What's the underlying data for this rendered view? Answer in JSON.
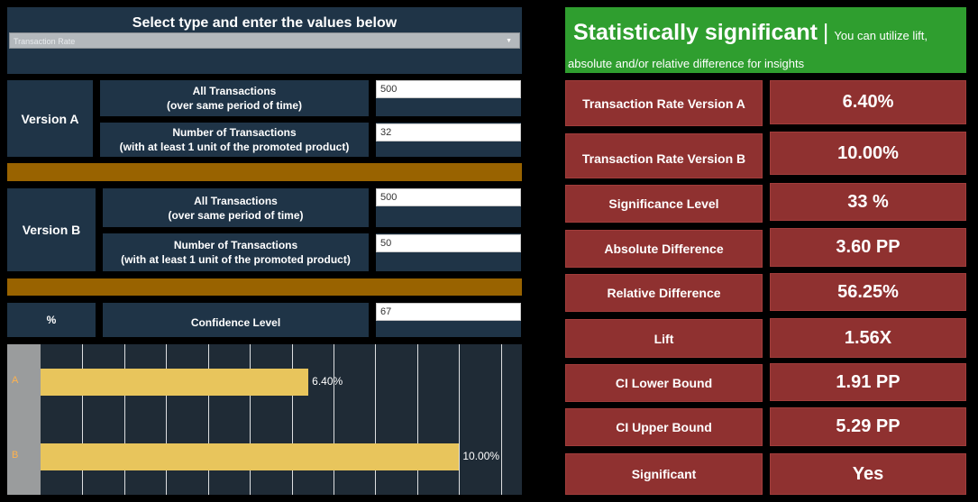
{
  "header": {
    "title": "Select type and enter the values below",
    "select_value": "Transaction Rate"
  },
  "version_a": {
    "label": "Version A",
    "all_transactions_label_1": "All Transactions",
    "all_transactions_label_2": "(over same period of time)",
    "all_transactions_value": "500",
    "num_transactions_label_1": "Number of Transactions",
    "num_transactions_label_2": "(with at least 1 unit of the promoted product)",
    "num_transactions_value": "32"
  },
  "version_b": {
    "label": "Version B",
    "all_transactions_label_1": "All Transactions",
    "all_transactions_label_2": "(over same period of time)",
    "all_transactions_value": "500",
    "num_transactions_label_1": "Number of Transactions",
    "num_transactions_label_2": "(with at least 1 unit of the promoted product)",
    "num_transactions_value": "50"
  },
  "confidence": {
    "unit_label": "%",
    "label": "Confidence Level",
    "value": "67"
  },
  "result_banner": {
    "title": "Statistically significant",
    "separator": "|",
    "subtitle_1": "You can utilize lift,",
    "subtitle_2": "absolute and/or relative difference for insights"
  },
  "results": [
    {
      "label": "Transaction Rate Version A",
      "value": "6.40%"
    },
    {
      "label": "Transaction Rate Version B",
      "value": "10.00%"
    },
    {
      "label": "Significance Level",
      "value": "33 %"
    },
    {
      "label": "Absolute Difference",
      "value": "3.60 PP"
    },
    {
      "label": "Relative Difference",
      "value": "56.25%"
    },
    {
      "label": "Lift",
      "value": "1.56X"
    },
    {
      "label": "CI Lower Bound",
      "value": "1.91 PP"
    },
    {
      "label": "CI Upper Bound",
      "value": "5.29 PP"
    },
    {
      "label": "Significant",
      "value": "Yes"
    }
  ],
  "colors": {
    "panel": "#1f3447",
    "divider": "#996300",
    "result": "#8f3130",
    "banner": "#2f9e2f",
    "bar": "#e8c55c"
  },
  "chart_data": {
    "type": "bar",
    "orientation": "horizontal",
    "categories": [
      "A",
      "B"
    ],
    "values": [
      6.4,
      10.0
    ],
    "value_labels": [
      "6.40%",
      "10.00%"
    ],
    "xlim": [
      0,
      11.5
    ],
    "grid": true
  }
}
